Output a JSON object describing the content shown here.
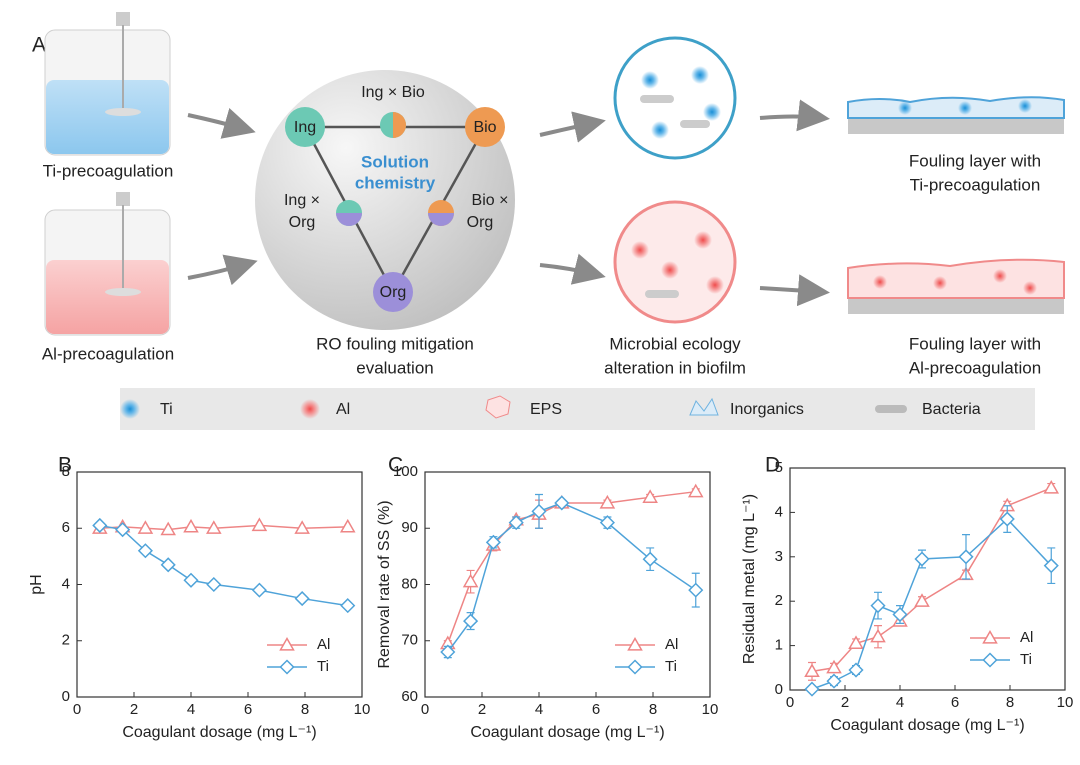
{
  "panel_labels": [
    "A",
    "B",
    "C",
    "D"
  ],
  "diagram": {
    "left": [
      "Ti-precoagulation",
      "Al-precoagulation"
    ],
    "nodes": [
      "Ing",
      "Bio",
      "Org"
    ],
    "interactions": [
      [
        "Ing × Bio"
      ],
      [
        "Ing ×",
        "Org"
      ],
      [
        "Bio ×",
        "Org"
      ]
    ],
    "center": [
      "Solution",
      "chemistry"
    ],
    "captions": [
      [
        "RO fouling mitigation",
        "evaluation"
      ],
      [
        "Microbial ecology",
        "alteration in biofilm"
      ],
      [
        "Fouling layer with",
        "Ti-precoagulation"
      ],
      [
        "Fouling layer with",
        "Al-precoagulation"
      ]
    ],
    "legend": [
      "Ti",
      "Al",
      "EPS",
      "Inorganics",
      "Bacteria"
    ]
  },
  "chart_data": [
    {
      "type": "line",
      "x_label": "Coagulant dosage (mg L⁻¹)",
      "y_label": "pH",
      "x": [
        0.8,
        1.6,
        2.4,
        3.2,
        4.0,
        4.8,
        6.4,
        7.9,
        9.5
      ],
      "series": [
        {
          "name": "Al",
          "color": "#ee8585",
          "marker": "triangle",
          "values": [
            6.0,
            6.05,
            6.0,
            5.95,
            6.05,
            6.0,
            6.1,
            6.0,
            6.05
          ]
        },
        {
          "name": "Ti",
          "color": "#4fa3d9",
          "marker": "diamond",
          "values": [
            6.1,
            5.95,
            5.2,
            4.7,
            4.15,
            4.0,
            3.8,
            3.5,
            3.25
          ]
        }
      ],
      "xlim": [
        0,
        10
      ],
      "xticks": [
        0,
        2,
        4,
        6,
        8,
        10
      ],
      "ylim": [
        0,
        8
      ],
      "yticks": [
        0,
        2,
        4,
        6,
        8
      ],
      "legend": "lower right"
    },
    {
      "type": "line",
      "x_label": "Coagulant dosage (mg L⁻¹)",
      "y_label": "Removal rate of SS (%)",
      "x": [
        0.8,
        1.6,
        2.4,
        3.2,
        4.0,
        4.8,
        6.4,
        7.9,
        9.5
      ],
      "series": [
        {
          "name": "Al",
          "color": "#ee8585",
          "marker": "triangle",
          "values": [
            69.5,
            80.5,
            87,
            91.5,
            92.5,
            94.5,
            94.5,
            95.5,
            96.5
          ],
          "errors": [
            0.5,
            2,
            1,
            0.5,
            2.5,
            0.5,
            0.5,
            0.5,
            0.5
          ]
        },
        {
          "name": "Ti",
          "color": "#4fa3d9",
          "marker": "diamond",
          "values": [
            68,
            73.5,
            87.5,
            91,
            93,
            94.5,
            91,
            84.5,
            79
          ],
          "errors": [
            1,
            1.5,
            1,
            1,
            3,
            0.5,
            1,
            2,
            3
          ]
        }
      ],
      "xlim": [
        0,
        10
      ],
      "xticks": [
        0,
        2,
        4,
        6,
        8,
        10
      ],
      "ylim": [
        60,
        100
      ],
      "yticks": [
        60,
        70,
        80,
        90,
        100
      ],
      "legend": "lower right"
    },
    {
      "type": "line",
      "x_label": "Coagulant dosage (mg L⁻¹)",
      "y_label": "Residual metal (mg L⁻¹)",
      "x": [
        0.8,
        1.6,
        2.4,
        3.2,
        4.0,
        4.8,
        6.4,
        7.9,
        9.5
      ],
      "series": [
        {
          "name": "Al",
          "color": "#ee8585",
          "marker": "triangle",
          "values": [
            0.42,
            0.5,
            1.05,
            1.2,
            1.55,
            2.0,
            2.6,
            4.15,
            4.55
          ],
          "errors": [
            0.2,
            0.1,
            0.1,
            0.25,
            0.1,
            0.1,
            0.1,
            0.1,
            0.1
          ]
        },
        {
          "name": "Ti",
          "color": "#4fa3d9",
          "marker": "diamond",
          "values": [
            0.02,
            0.2,
            0.45,
            1.9,
            1.7,
            2.95,
            3.0,
            3.85,
            2.8
          ],
          "errors": [
            0.05,
            0.1,
            0.1,
            0.3,
            0.2,
            0.2,
            0.5,
            0.3,
            0.4
          ]
        }
      ],
      "xlim": [
        0,
        10
      ],
      "xticks": [
        0,
        2,
        4,
        6,
        8,
        10
      ],
      "ylim": [
        0,
        5
      ],
      "yticks": [
        0,
        1,
        2,
        3,
        4,
        5
      ],
      "legend": "lower right"
    }
  ]
}
